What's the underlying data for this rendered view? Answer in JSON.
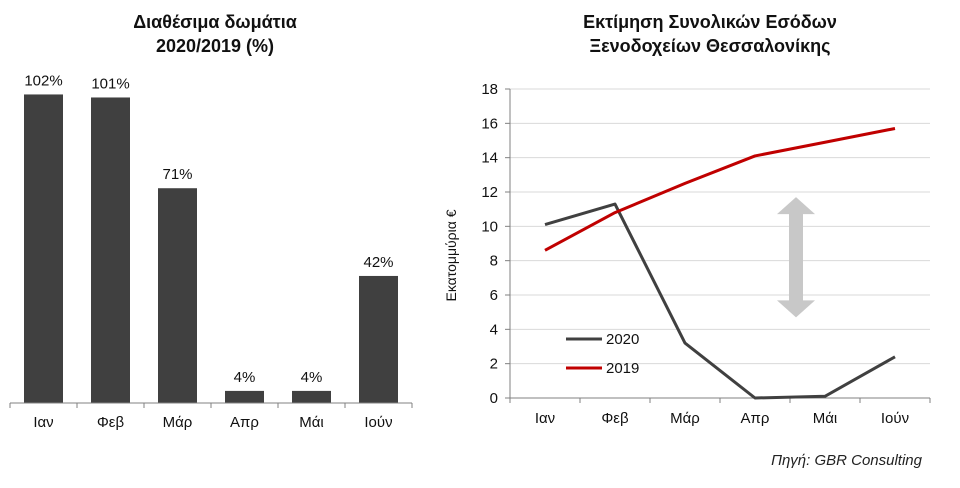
{
  "chart_data": [
    {
      "type": "bar",
      "title_line1": "Διαθέσιμα δωμάτια",
      "title_line2": "2020/2019 (%)",
      "categories": [
        "Ιαν",
        "Φεβ",
        "Μάρ",
        "Απρ",
        "Μάι",
        "Ιούν"
      ],
      "values": [
        102,
        101,
        71,
        4,
        4,
        42
      ],
      "data_labels": [
        "102%",
        "101%",
        "71%",
        "4%",
        "4%",
        "42%"
      ],
      "ylim": [
        0,
        120
      ],
      "bar_color": "#404040"
    },
    {
      "type": "line",
      "title_line1": "Εκτίμηση Συνολικών Εσόδων",
      "title_line2": "Ξενοδοχείων Θεσσαλονίκης",
      "ylabel": "Εκατομμύρια €",
      "categories": [
        "Ιαν",
        "Φεβ",
        "Μάρ",
        "Απρ",
        "Μάι",
        "Ιούν"
      ],
      "ylim": [
        0,
        18
      ],
      "yticks": [
        "0",
        "2",
        "4",
        "6",
        "8",
        "10",
        "12",
        "14",
        "16",
        "18"
      ],
      "series": [
        {
          "name": "2020",
          "values": [
            10.1,
            11.3,
            3.2,
            0.0,
            0.1,
            2.4
          ],
          "color": "#404040"
        },
        {
          "name": "2019",
          "values": [
            8.6,
            10.8,
            12.5,
            14.1,
            14.9,
            15.7
          ],
          "color": "#c00000"
        }
      ],
      "legend_position": "bottom-left",
      "annotation": "double-arrow",
      "arrow_color": "#c8c8c8",
      "grid_color": "#d9d9d9"
    }
  ],
  "source": "Πηγή: GBR Consulting"
}
